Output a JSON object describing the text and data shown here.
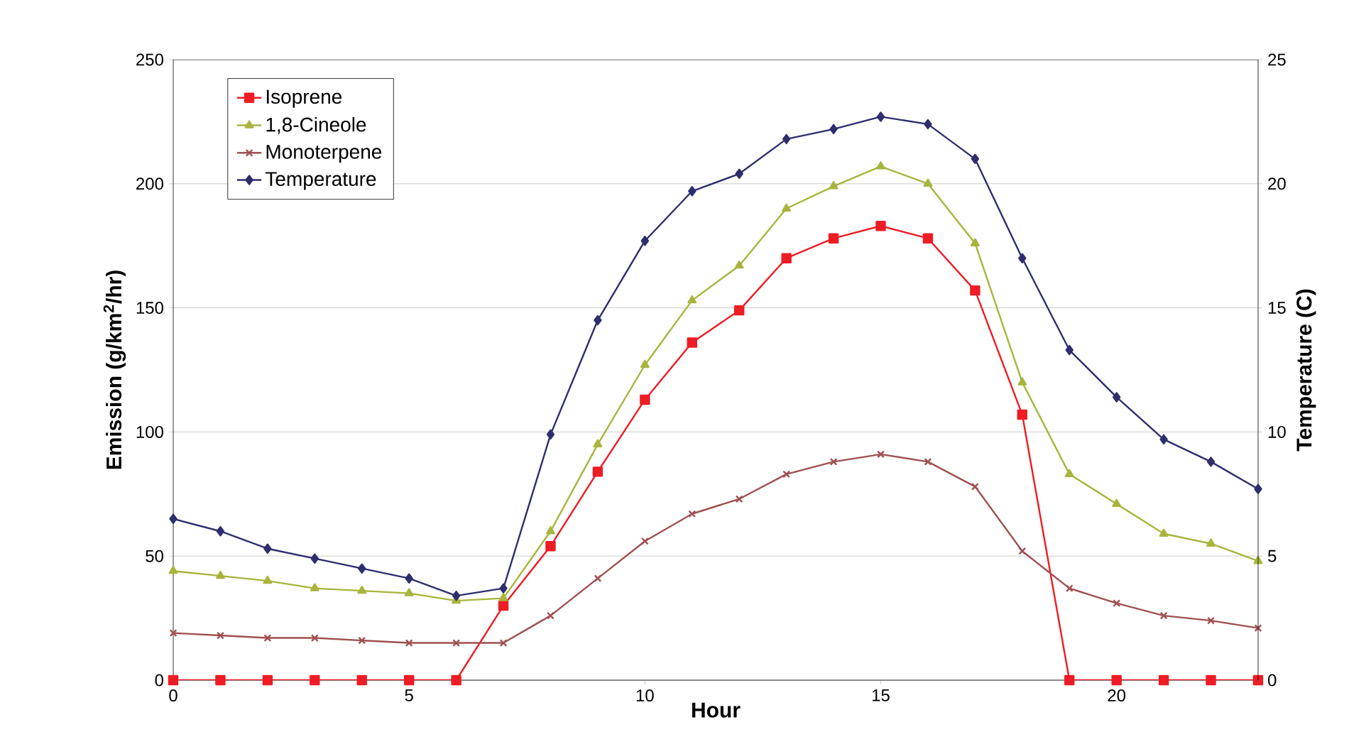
{
  "chart_data": {
    "type": "line",
    "xlabel": "Hour",
    "ylabel": "Emission (g/km$^{2}$/hr)",
    "y2label": "Temperature (C)",
    "x": [
      0,
      1,
      2,
      3,
      4,
      5,
      6,
      7,
      8,
      9,
      10,
      11,
      12,
      13,
      14,
      15,
      16,
      17,
      18,
      19,
      20,
      21,
      22,
      23
    ],
    "xlim": [
      0,
      23
    ],
    "xticks": [
      0,
      5,
      10,
      15,
      20
    ],
    "ylim": [
      0,
      250
    ],
    "yticks": [
      0,
      50,
      100,
      150,
      200,
      250
    ],
    "y2lim": [
      0,
      25
    ],
    "y2ticks": [
      0,
      5,
      10,
      15,
      20,
      25
    ],
    "grid": "y",
    "legend": "top left",
    "line_style": "solid",
    "series": [
      {
        "name": "Isoprene",
        "color": "#ee1c24",
        "marker": "square",
        "values": [
          0,
          0,
          0,
          0,
          0,
          0,
          0,
          30,
          54,
          84,
          113,
          136,
          149,
          170,
          178,
          183,
          178,
          157,
          107,
          0,
          0,
          0,
          0,
          0
        ]
      },
      {
        "name": "1,8-Cineole",
        "color": "#a8b43c",
        "marker": "triangle",
        "values": [
          44,
          42,
          40,
          37,
          36,
          35,
          32,
          33,
          60,
          95,
          127,
          153,
          167,
          190,
          199,
          207,
          200,
          176,
          120,
          83,
          71,
          59,
          55,
          48
        ]
      },
      {
        "name": "Monoterpene",
        "color": "#a05050",
        "marker": "cross",
        "values": [
          19,
          18,
          17,
          17,
          16,
          15,
          15,
          15,
          26,
          41,
          56,
          67,
          73,
          83,
          88,
          91,
          88,
          78,
          52,
          37,
          31,
          26,
          24,
          21
        ]
      },
      {
        "name": "Temperature",
        "color": "#2e2e6e",
        "marker": "diamond",
        "axis": "y2",
        "values": [
          6.5,
          6.0,
          5.3,
          4.9,
          4.5,
          4.1,
          3.4,
          3.7,
          9.9,
          14.5,
          17.7,
          19.7,
          20.4,
          21.8,
          22.2,
          22.7,
          22.4,
          21.0,
          17.0,
          13.3,
          11.4,
          9.7,
          8.8,
          7.7
        ]
      }
    ]
  }
}
